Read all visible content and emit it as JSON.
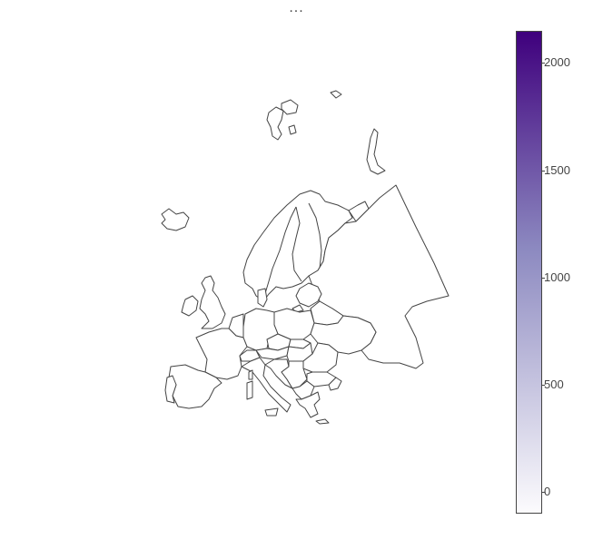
{
  "title": "...",
  "colorbar": {
    "color_high": "#3f007d",
    "color_mid": "#8c89c0",
    "color_low": "#fcfbfd",
    "max": 2150,
    "min": -100,
    "ticks": [
      {
        "value": 2000,
        "label": "2000"
      },
      {
        "value": 1500,
        "label": "1500"
      },
      {
        "value": 1000,
        "label": "1000"
      },
      {
        "value": 500,
        "label": "500"
      },
      {
        "value": 0,
        "label": "0"
      }
    ]
  },
  "map": {
    "region": "Europe",
    "stroke_color": "#444444",
    "fill_color": "#ffffff"
  }
}
